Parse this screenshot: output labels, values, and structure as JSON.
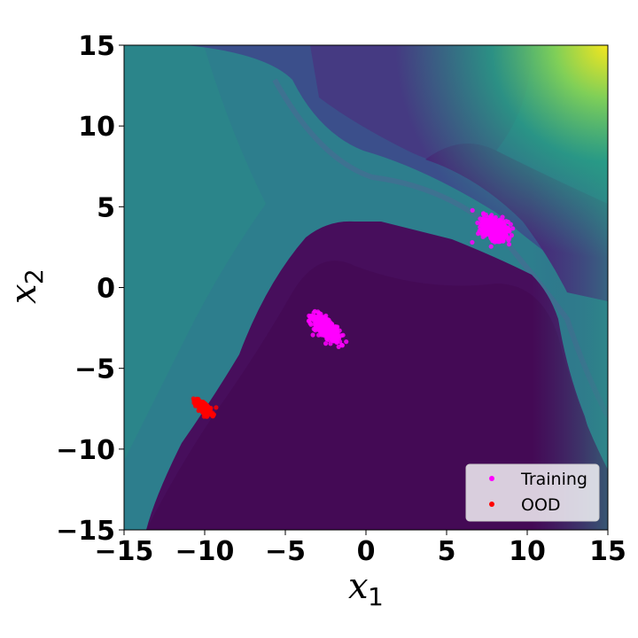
{
  "chart_data": {
    "type": "scatter",
    "title": "",
    "xlabel": "x",
    "xlabel_sub": "1",
    "ylabel": "x",
    "ylabel_sub": "2",
    "xlim": [
      -15,
      15
    ],
    "ylim": [
      -15,
      15
    ],
    "x_ticks": [
      -15,
      -10,
      -5,
      0,
      5,
      10,
      15
    ],
    "y_ticks": [
      -15,
      -10,
      -5,
      0,
      5,
      10,
      15
    ],
    "x_tick_labels": [
      "−15",
      "−10",
      "−5",
      "0",
      "5",
      "10",
      "15"
    ],
    "y_tick_labels": [
      "−15",
      "−10",
      "−5",
      "0",
      "5",
      "10",
      "15"
    ],
    "grid": false,
    "legend_position": "bottom-right",
    "background": "uncertainty heatmap (viridis colormap): low values in the lower-left region around the training data, high values toward the top-right corner",
    "series": [
      {
        "name": "Training",
        "color": "#ff00ff",
        "clusters": [
          {
            "center": [
              8.0,
              3.6
            ],
            "count": 400,
            "spread": [
              0.9,
              0.7
            ],
            "angle_deg": -35
          },
          {
            "center": [
              -2.5,
              -2.5
            ],
            "count": 400,
            "spread": [
              1.0,
              0.45
            ],
            "angle_deg": -45
          }
        ]
      },
      {
        "name": "OOD",
        "color": "#ff0000",
        "clusters": [
          {
            "center": [
              -10.0,
              -7.5
            ],
            "count": 200,
            "spread": [
              0.6,
              0.3
            ],
            "angle_deg": -40
          }
        ]
      }
    ]
  },
  "legend": {
    "training_label": "Training",
    "ood_label": "OOD"
  }
}
